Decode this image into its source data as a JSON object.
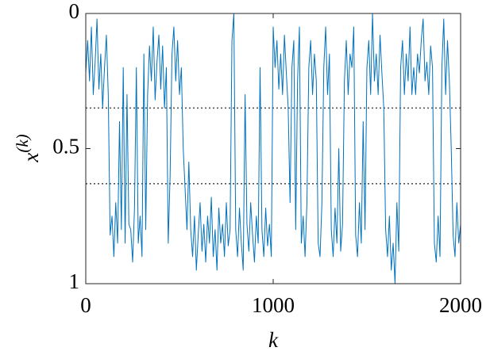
{
  "chart_data": {
    "type": "line",
    "xlabel": "k",
    "ylabel": {
      "base": "x",
      "sup": "(k)"
    },
    "xlim": [
      0,
      2000
    ],
    "xticks": [
      0,
      1000,
      2000
    ],
    "ylim": [
      0,
      1
    ],
    "yticks": [
      0,
      0.5,
      1
    ],
    "y_direction": "reverse",
    "reference_lines": {
      "values": [
        0.35,
        0.63
      ],
      "color": "#555555",
      "style": "dotted"
    },
    "x": [
      0,
      10,
      20,
      30,
      40,
      50,
      60,
      70,
      80,
      90,
      100,
      110,
      120,
      130,
      140,
      150,
      160,
      170,
      180,
      190,
      200,
      210,
      220,
      230,
      240,
      250,
      260,
      270,
      280,
      290,
      300,
      310,
      320,
      330,
      340,
      350,
      360,
      370,
      380,
      390,
      400,
      410,
      420,
      430,
      440,
      450,
      460,
      470,
      480,
      490,
      500,
      510,
      520,
      530,
      540,
      550,
      560,
      570,
      580,
      590,
      600,
      610,
      620,
      630,
      640,
      650,
      660,
      670,
      680,
      690,
      700,
      710,
      720,
      730,
      740,
      750,
      760,
      770,
      780,
      790,
      800,
      810,
      820,
      830,
      840,
      850,
      860,
      870,
      880,
      890,
      900,
      910,
      920,
      930,
      940,
      950,
      960,
      970,
      980,
      990,
      1000,
      1010,
      1020,
      1030,
      1040,
      1050,
      1060,
      1070,
      1080,
      1090,
      1100,
      1110,
      1120,
      1130,
      1140,
      1150,
      1160,
      1170,
      1180,
      1190,
      1200,
      1210,
      1220,
      1230,
      1240,
      1250,
      1260,
      1270,
      1280,
      1290,
      1300,
      1310,
      1320,
      1330,
      1340,
      1350,
      1360,
      1370,
      1380,
      1390,
      1400,
      1410,
      1420,
      1430,
      1440,
      1450,
      1460,
      1470,
      1480,
      1490,
      1500,
      1510,
      1520,
      1530,
      1540,
      1550,
      1560,
      1570,
      1580,
      1590,
      1600,
      1610,
      1620,
      1630,
      1640,
      1650,
      1660,
      1670,
      1680,
      1690,
      1700,
      1710,
      1720,
      1730,
      1740,
      1750,
      1760,
      1770,
      1780,
      1790,
      1800,
      1810,
      1820,
      1830,
      1840,
      1850,
      1860,
      1870,
      1880,
      1890,
      1900,
      1910,
      1920,
      1930,
      1940,
      1950,
      1960,
      1970,
      1980,
      1990,
      2000
    ],
    "series": [
      {
        "color": "#0072bd",
        "values": [
          0.22,
          0.1,
          0.25,
          0.05,
          0.3,
          0.18,
          0.02,
          0.28,
          0.15,
          0.35,
          0.2,
          0.08,
          0.3,
          0.82,
          0.75,
          0.9,
          0.7,
          0.85,
          0.4,
          0.8,
          0.2,
          0.85,
          0.3,
          0.78,
          0.8,
          0.92,
          0.72,
          0.2,
          0.85,
          0.75,
          0.9,
          0.15,
          0.8,
          0.3,
          0.12,
          0.25,
          0.05,
          0.32,
          0.18,
          0.08,
          0.28,
          0.12,
          0.35,
          0.2,
          0.85,
          0.6,
          0.15,
          0.05,
          0.25,
          0.1,
          0.3,
          0.2,
          0.5,
          0.65,
          0.8,
          0.55,
          0.8,
          0.9,
          0.75,
          0.95,
          0.82,
          0.7,
          0.88,
          0.78,
          0.92,
          0.75,
          0.85,
          0.68,
          0.9,
          0.8,
          0.95,
          0.72,
          0.85,
          0.78,
          0.9,
          0.7,
          0.86,
          0.8,
          0.1,
          0.0,
          0.8,
          0.9,
          0.72,
          0.85,
          0.95,
          0.3,
          0.78,
          0.88,
          0.7,
          0.82,
          0.92,
          0.75,
          0.85,
          0.2,
          0.8,
          0.9,
          0.72,
          0.86,
          0.78,
          0.9,
          0.05,
          0.2,
          0.1,
          0.28,
          0.15,
          0.3,
          0.08,
          0.22,
          0.35,
          0.7,
          0.2,
          0.1,
          0.8,
          0.25,
          0.05,
          0.85,
          0.75,
          0.9,
          0.7,
          0.2,
          0.1,
          0.3,
          0.15,
          0.25,
          0.85,
          0.9,
          0.7,
          0.2,
          0.05,
          0.3,
          0.15,
          0.8,
          0.9,
          0.72,
          0.85,
          0.5,
          0.88,
          0.78,
          0.25,
          0.1,
          0.3,
          0.15,
          0.2,
          0.05,
          0.82,
          0.9,
          0.7,
          0.85,
          0.4,
          0.8,
          0.2,
          0.1,
          0.3,
          0.0,
          0.25,
          0.15,
          0.3,
          0.08,
          0.22,
          0.35,
          0.8,
          0.9,
          0.75,
          0.95,
          0.85,
          1.0,
          0.7,
          0.88,
          0.2,
          0.1,
          0.3,
          0.15,
          0.25,
          0.05,
          0.3,
          0.2,
          0.3,
          0.15,
          0.22,
          0.1,
          0.02,
          0.25,
          0.18,
          0.3,
          0.12,
          0.2,
          0.85,
          0.92,
          0.75,
          0.9,
          0.2,
          0.02,
          0.3,
          0.1,
          0.25,
          0.5,
          0.82,
          0.9,
          0.7,
          0.85,
          0.78
        ]
      }
    ]
  }
}
